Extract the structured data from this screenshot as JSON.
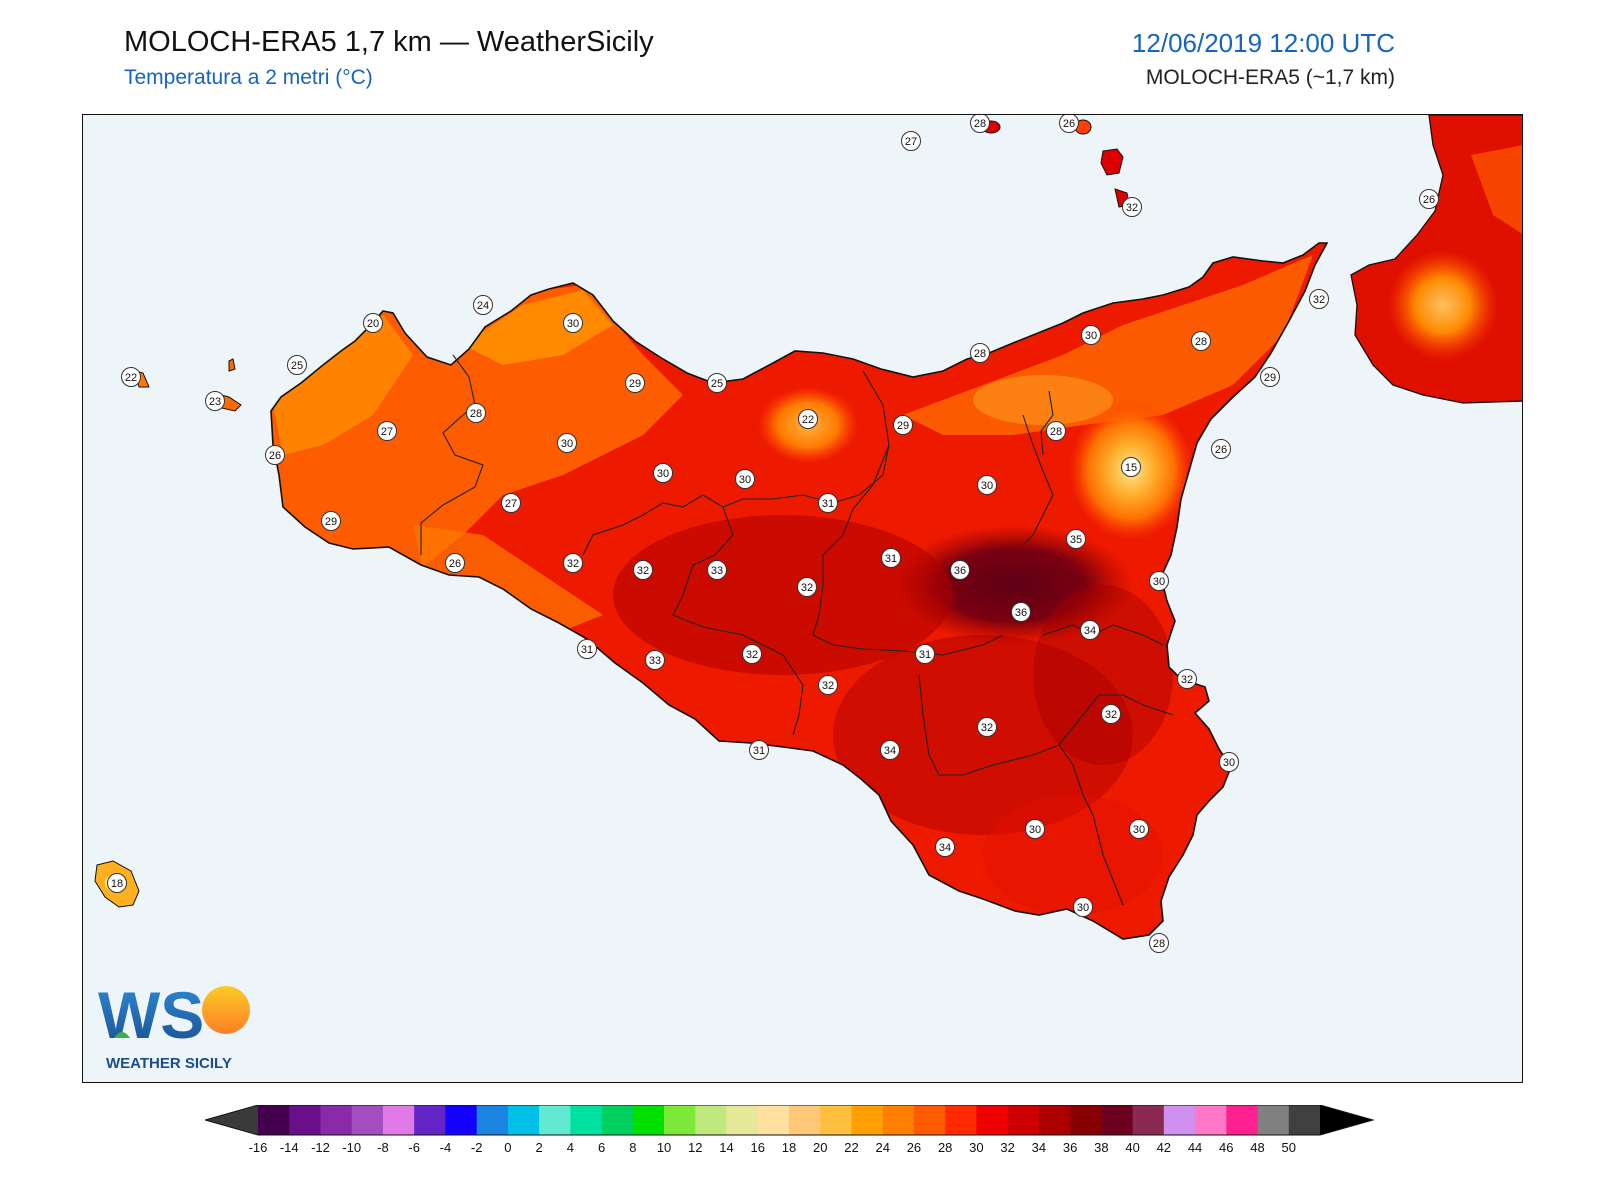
{
  "header": {
    "title": "MOLOCH-ERA5 1,7 km — WeatherSicily",
    "subtitle": "Temperatura a 2 metri (°C)",
    "datetime": "12/06/2019 12:00 UTC",
    "model_ref": "MOLOCH-ERA5 (~1,7 km)"
  },
  "logo": {
    "text": "WEATHER SICILY",
    "letters": "WS"
  },
  "colors": {
    "sea": "#eef5f9",
    "accent": "#1565c0"
  },
  "colorbar": {
    "unit": "°C",
    "ticks": [
      "-16",
      "-14",
      "-12",
      "-10",
      "-8",
      "-6",
      "-4",
      "-2",
      "0",
      "2",
      "4",
      "6",
      "8",
      "10",
      "12",
      "14",
      "16",
      "18",
      "20",
      "22",
      "24",
      "26",
      "28",
      "30",
      "32",
      "34",
      "36",
      "38",
      "40",
      "42",
      "44",
      "46",
      "48",
      "50"
    ],
    "bins": [
      "#44004f",
      "#6a0f8a",
      "#8a2aa8",
      "#a44dbf",
      "#e07ae6",
      "#6425c7",
      "#1300ff",
      "#1b83e0",
      "#00c0e8",
      "#63e8d2",
      "#00e0a0",
      "#00d060",
      "#00e000",
      "#7ee83a",
      "#bfe87e",
      "#e6e89a",
      "#ffe0a0",
      "#ffc878",
      "#ffc040",
      "#ffa000",
      "#ff8000",
      "#ff5a00",
      "#ff2a00",
      "#ee0000",
      "#cc0000",
      "#aa0000",
      "#880000",
      "#6d0020",
      "#8a2a50",
      "#d090f0",
      "#ff78c8",
      "#ff2090",
      "#808080",
      "#404040"
    ],
    "under_color": "#3a3a3a",
    "over_color": "#000000"
  },
  "station_labels": [
    {
      "name": "ustica",
      "value": "27"
    },
    {
      "name": "alicudi-filicudi",
      "value": "28"
    },
    {
      "name": "salina",
      "value": "26"
    },
    {
      "name": "vulcano",
      "value": "32"
    },
    {
      "name": "marettimo",
      "value": "22"
    },
    {
      "name": "favignana",
      "value": "23"
    },
    {
      "name": "trapani",
      "value": "25"
    },
    {
      "name": "san-vito",
      "value": "20"
    },
    {
      "name": "castellammare",
      "value": "24"
    },
    {
      "name": "palermo",
      "value": "30"
    },
    {
      "name": "bagheria",
      "value": "29"
    },
    {
      "name": "termini",
      "value": "25"
    },
    {
      "name": "cefalu",
      "value": "28"
    },
    {
      "name": "capo-orlando",
      "value": "30"
    },
    {
      "name": "milazzo",
      "value": "28"
    },
    {
      "name": "messina",
      "value": "32"
    },
    {
      "name": "taormina",
      "value": "29"
    },
    {
      "name": "giarre",
      "value": "26"
    },
    {
      "name": "etna",
      "value": "15"
    },
    {
      "name": "marsala",
      "value": "26"
    },
    {
      "name": "mazara",
      "value": "29"
    },
    {
      "name": "salemi",
      "value": "27"
    },
    {
      "name": "alcamo",
      "value": "28"
    },
    {
      "name": "corleone",
      "value": "30"
    },
    {
      "name": "prizzi",
      "value": "30"
    },
    {
      "name": "madonie",
      "value": "22"
    },
    {
      "name": "petralia",
      "value": "30"
    },
    {
      "name": "nicosia",
      "value": "29"
    },
    {
      "name": "bronte",
      "value": "28"
    },
    {
      "name": "troina",
      "value": "30"
    },
    {
      "name": "cammarata",
      "value": "31"
    },
    {
      "name": "castelvetrano",
      "value": "27"
    },
    {
      "name": "selinunte",
      "value": "26"
    },
    {
      "name": "sciacca",
      "value": "32"
    },
    {
      "name": "bivona",
      "value": "32"
    },
    {
      "name": "lercara",
      "value": "33"
    },
    {
      "name": "caltanissetta",
      "value": "32"
    },
    {
      "name": "enna",
      "value": "31"
    },
    {
      "name": "adrano",
      "value": "36"
    },
    {
      "name": "paterno",
      "value": "35"
    },
    {
      "name": "catania-piana",
      "value": "36"
    },
    {
      "name": "catania",
      "value": "30"
    },
    {
      "name": "ribera",
      "value": "31"
    },
    {
      "name": "agrigento-interno",
      "value": "33"
    },
    {
      "name": "canicatti",
      "value": "32"
    },
    {
      "name": "piazza",
      "value": "31"
    },
    {
      "name": "lentini",
      "value": "34"
    },
    {
      "name": "augusta",
      "value": "32"
    },
    {
      "name": "riesi",
      "value": "32"
    },
    {
      "name": "caltagirone",
      "value": "32"
    },
    {
      "name": "vizzini",
      "value": "32"
    },
    {
      "name": "agrigento",
      "value": "31"
    },
    {
      "name": "gela",
      "value": "34"
    },
    {
      "name": "siracusa",
      "value": "30"
    },
    {
      "name": "ragusa",
      "value": "30"
    },
    {
      "name": "noto",
      "value": "30"
    },
    {
      "name": "pozzallo",
      "value": "34"
    },
    {
      "name": "ispica",
      "value": "30"
    },
    {
      "name": "capo-passero",
      "value": "28"
    },
    {
      "name": "calabria",
      "value": "26"
    },
    {
      "name": "pantelleria",
      "value": "18"
    }
  ]
}
